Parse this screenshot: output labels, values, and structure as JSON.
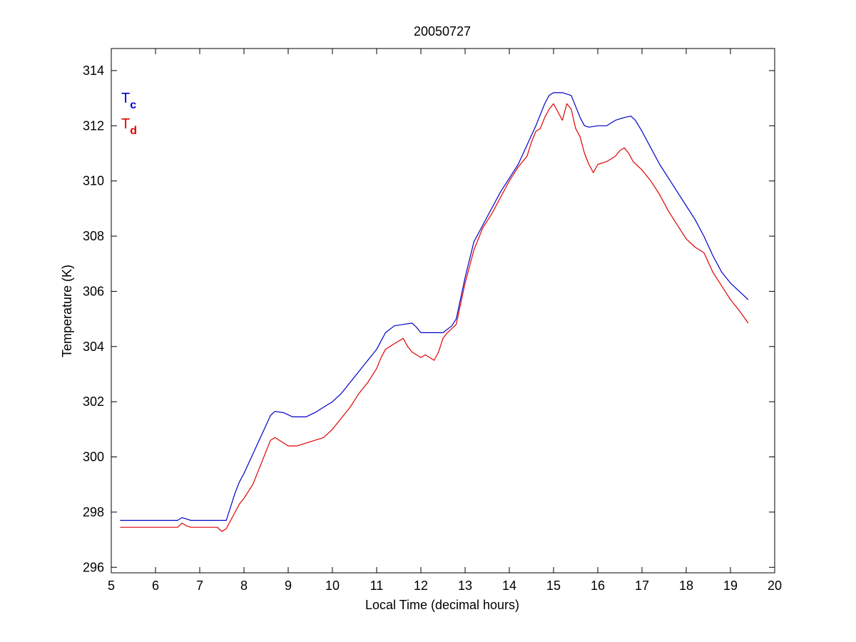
{
  "chart_data": {
    "type": "line",
    "title": "20050727",
    "xlabel": "Local Time (decimal hours)",
    "ylabel": "Temperature (K)",
    "xlim": [
      5,
      20
    ],
    "ylim": [
      295.8,
      314.8
    ],
    "xticks": [
      5,
      6,
      7,
      8,
      9,
      10,
      11,
      12,
      13,
      14,
      15,
      16,
      17,
      18,
      19,
      20
    ],
    "yticks": [
      296,
      298,
      300,
      302,
      304,
      306,
      308,
      310,
      312,
      314
    ],
    "legend_position": "top-left",
    "grid": false,
    "series": [
      {
        "name": "Tc",
        "name_main": "T",
        "name_sub": "c",
        "color": "#0000c8",
        "x": [
          5.2,
          6.5,
          6.6,
          6.7,
          6.8,
          7.5,
          7.6,
          7.7,
          7.8,
          7.9,
          8.0,
          8.2,
          8.4,
          8.6,
          8.7,
          8.9,
          9.1,
          9.4,
          9.6,
          9.8,
          10.0,
          10.2,
          10.4,
          10.6,
          10.8,
          11.0,
          11.2,
          11.4,
          11.6,
          11.8,
          11.9,
          12.0,
          12.3,
          12.5,
          12.7,
          12.8,
          13.0,
          13.2,
          13.4,
          13.6,
          13.8,
          14.0,
          14.2,
          14.4,
          14.6,
          14.8,
          14.9,
          15.0,
          15.2,
          15.4,
          15.5,
          15.6,
          15.7,
          15.8,
          16.0,
          16.2,
          16.4,
          16.6,
          16.75,
          16.85,
          17.0,
          17.2,
          17.4,
          17.6,
          17.8,
          18.0,
          18.2,
          18.4,
          18.6,
          18.8,
          19.0,
          19.2,
          19.4
        ],
        "y": [
          297.7,
          297.7,
          297.8,
          297.75,
          297.7,
          297.7,
          297.7,
          298.2,
          298.7,
          299.1,
          299.4,
          300.1,
          300.8,
          301.5,
          301.65,
          301.6,
          301.45,
          301.45,
          301.6,
          301.8,
          302.0,
          302.3,
          302.7,
          303.1,
          303.5,
          303.9,
          304.5,
          304.75,
          304.8,
          304.85,
          304.7,
          304.5,
          304.5,
          304.5,
          304.75,
          305.0,
          306.5,
          307.8,
          308.4,
          309.0,
          309.6,
          310.1,
          310.6,
          311.3,
          312.0,
          312.8,
          313.1,
          313.2,
          313.2,
          313.1,
          312.7,
          312.3,
          312.0,
          311.95,
          312.0,
          312.0,
          312.2,
          312.3,
          312.35,
          312.2,
          311.8,
          311.2,
          310.6,
          310.1,
          309.6,
          309.1,
          308.6,
          308.0,
          307.3,
          306.7,
          306.3,
          306.0,
          305.7
        ]
      },
      {
        "name": "Td",
        "name_main": "T",
        "name_sub": "d",
        "color": "#e00000",
        "x": [
          5.2,
          6.5,
          6.6,
          6.7,
          6.8,
          7.4,
          7.5,
          7.6,
          7.7,
          7.8,
          7.9,
          8.0,
          8.2,
          8.4,
          8.5,
          8.6,
          8.7,
          8.8,
          8.9,
          9.0,
          9.2,
          9.4,
          9.6,
          9.8,
          10.0,
          10.2,
          10.4,
          10.6,
          10.8,
          11.0,
          11.1,
          11.2,
          11.3,
          11.4,
          11.5,
          11.6,
          11.7,
          11.8,
          11.9,
          12.0,
          12.1,
          12.2,
          12.3,
          12.4,
          12.5,
          12.6,
          12.8,
          13.0,
          13.1,
          13.2,
          13.4,
          13.6,
          13.8,
          14.0,
          14.2,
          14.4,
          14.5,
          14.6,
          14.7,
          14.8,
          14.9,
          15.0,
          15.1,
          15.2,
          15.3,
          15.4,
          15.5,
          15.6,
          15.7,
          15.8,
          15.9,
          16.0,
          16.2,
          16.4,
          16.5,
          16.6,
          16.7,
          16.8,
          17.0,
          17.2,
          17.4,
          17.6,
          17.8,
          18.0,
          18.2,
          18.4,
          18.6,
          18.8,
          19.0,
          19.2,
          19.4
        ],
        "y": [
          297.45,
          297.45,
          297.6,
          297.5,
          297.45,
          297.45,
          297.3,
          297.4,
          297.7,
          298.0,
          298.3,
          298.5,
          299.0,
          299.8,
          300.2,
          300.6,
          300.7,
          300.6,
          300.5,
          300.4,
          300.4,
          300.5,
          300.6,
          300.7,
          301.0,
          301.4,
          301.8,
          302.3,
          302.7,
          303.2,
          303.6,
          303.9,
          304.0,
          304.1,
          304.2,
          304.3,
          304.0,
          303.8,
          303.7,
          303.6,
          303.7,
          303.6,
          303.5,
          303.8,
          304.3,
          304.5,
          304.8,
          306.3,
          306.9,
          307.5,
          308.3,
          308.8,
          309.4,
          310.0,
          310.5,
          310.9,
          311.4,
          311.8,
          311.9,
          312.3,
          312.6,
          312.8,
          312.5,
          312.2,
          312.8,
          312.6,
          311.9,
          311.6,
          311.0,
          310.6,
          310.3,
          310.6,
          310.7,
          310.9,
          311.1,
          311.2,
          311.0,
          310.7,
          310.4,
          310.0,
          309.5,
          308.9,
          308.4,
          307.9,
          307.6,
          307.4,
          306.7,
          306.2,
          305.7,
          305.3,
          304.85
        ]
      }
    ]
  }
}
